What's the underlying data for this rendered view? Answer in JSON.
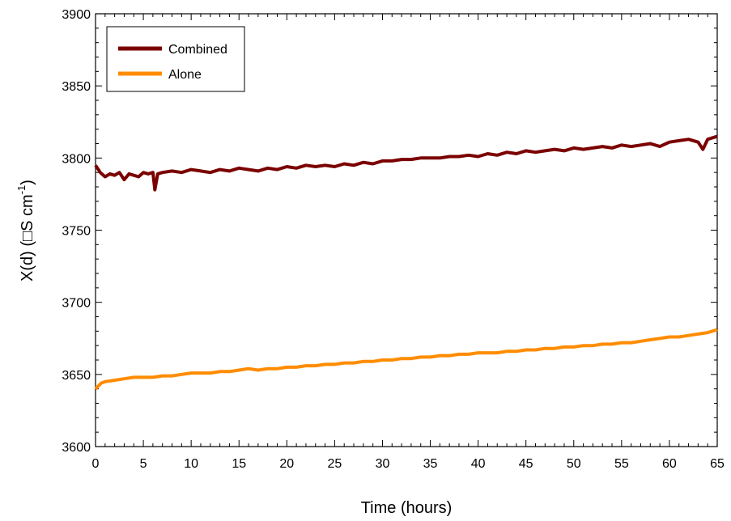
{
  "chart_data": {
    "type": "line",
    "title": "",
    "xlabel": "Time (hours)",
    "ylabel": "X(d) (□S cm",
    "ylabel_superscript": "-1",
    "ylabel_close": ")",
    "xlim": [
      0,
      65
    ],
    "ylim": [
      3600,
      3900
    ],
    "x_ticks": [
      "0",
      "5",
      "10",
      "15",
      "20",
      "25",
      "30",
      "35",
      "40",
      "45",
      "50",
      "55",
      "60",
      "65"
    ],
    "y_ticks": [
      "3600",
      "3650",
      "3700",
      "3750",
      "3800",
      "3850",
      "3900"
    ],
    "grid": false,
    "legend_position": "top-left",
    "series": [
      {
        "name": "Combined",
        "color": "#7b0000",
        "x": [
          0,
          0.5,
          1,
          1.5,
          2,
          2.5,
          3,
          3.5,
          4,
          4.5,
          5,
          5.5,
          6,
          6.2,
          6.5,
          7,
          8,
          9,
          10,
          11,
          12,
          13,
          14,
          15,
          16,
          17,
          18,
          19,
          20,
          21,
          22,
          23,
          24,
          25,
          26,
          27,
          28,
          29,
          30,
          31,
          32,
          33,
          34,
          35,
          36,
          37,
          38,
          39,
          40,
          41,
          42,
          43,
          44,
          45,
          46,
          47,
          48,
          49,
          50,
          51,
          52,
          53,
          54,
          55,
          56,
          57,
          58,
          59,
          60,
          61,
          62,
          63,
          63.5,
          64,
          65
        ],
        "y": [
          3795,
          3790,
          3787,
          3789,
          3788,
          3790,
          3785,
          3789,
          3788,
          3787,
          3790,
          3789,
          3790,
          3778,
          3789,
          3790,
          3791,
          3790,
          3792,
          3791,
          3790,
          3792,
          3791,
          3793,
          3792,
          3791,
          3793,
          3792,
          3794,
          3793,
          3795,
          3794,
          3795,
          3794,
          3796,
          3795,
          3797,
          3796,
          3798,
          3798,
          3799,
          3799,
          3800,
          3800,
          3800,
          3801,
          3801,
          3802,
          3801,
          3803,
          3802,
          3804,
          3803,
          3805,
          3804,
          3805,
          3806,
          3805,
          3807,
          3806,
          3807,
          3808,
          3807,
          3809,
          3808,
          3809,
          3810,
          3808,
          3811,
          3812,
          3813,
          3811,
          3806,
          3813,
          3815
        ]
      },
      {
        "name": "Alone",
        "color": "#ff8c00",
        "x": [
          0,
          0.3,
          0.6,
          1,
          2,
          3,
          4,
          5,
          6,
          7,
          8,
          9,
          10,
          11,
          12,
          13,
          14,
          15,
          16,
          17,
          18,
          19,
          20,
          21,
          22,
          23,
          24,
          25,
          26,
          27,
          28,
          29,
          30,
          31,
          32,
          33,
          34,
          35,
          36,
          37,
          38,
          39,
          40,
          41,
          42,
          43,
          44,
          45,
          46,
          47,
          48,
          49,
          50,
          51,
          52,
          53,
          54,
          55,
          56,
          57,
          58,
          59,
          60,
          61,
          62,
          63,
          64,
          65
        ],
        "y": [
          3640,
          3642,
          3644,
          3645,
          3646,
          3647,
          3648,
          3648,
          3648,
          3649,
          3649,
          3650,
          3651,
          3651,
          3651,
          3652,
          3652,
          3653,
          3654,
          3653,
          3654,
          3654,
          3655,
          3655,
          3656,
          3656,
          3657,
          3657,
          3658,
          3658,
          3659,
          3659,
          3660,
          3660,
          3661,
          3661,
          3662,
          3662,
          3663,
          3663,
          3664,
          3664,
          3665,
          3665,
          3665,
          3666,
          3666,
          3667,
          3667,
          3668,
          3668,
          3669,
          3669,
          3670,
          3670,
          3671,
          3671,
          3672,
          3672,
          3673,
          3674,
          3675,
          3676,
          3676,
          3677,
          3678,
          3679,
          3681
        ]
      }
    ]
  }
}
